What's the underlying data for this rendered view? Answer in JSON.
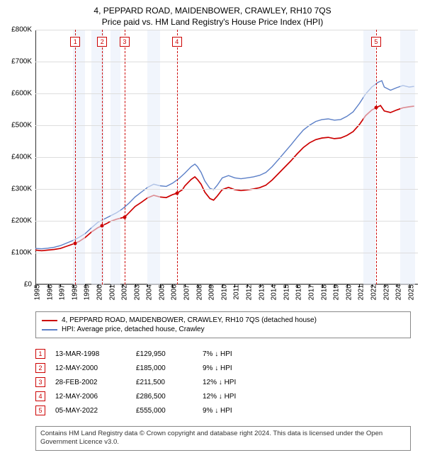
{
  "title_line1": "4, PEPPARD ROAD, MAIDENBOWER, CRAWLEY, RH10 7QS",
  "title_line2": "Price paid vs. HM Land Registry's House Price Index (HPI)",
  "chart": {
    "type": "line",
    "x_min": 1995,
    "x_max": 2025.7,
    "y_min": 0,
    "y_max": 800000,
    "y_ticks": [
      0,
      100000,
      200000,
      300000,
      400000,
      500000,
      600000,
      700000,
      800000
    ],
    "y_tick_labels": [
      "£0",
      "£100K",
      "£200K",
      "£300K",
      "£400K",
      "£500K",
      "£600K",
      "£700K",
      "£800K"
    ],
    "x_ticks": [
      1995,
      1996,
      1997,
      1998,
      1999,
      2000,
      2001,
      2002,
      2003,
      2004,
      2005,
      2006,
      2007,
      2008,
      2009,
      2010,
      2011,
      2012,
      2013,
      2014,
      2015,
      2016,
      2017,
      2018,
      2019,
      2020,
      2021,
      2022,
      2023,
      2024,
      2025
    ],
    "grid_color": "#dddddd",
    "shade_color": "#e8eefa",
    "shaded_ranges": [
      [
        1998,
        1999
      ],
      [
        1999.5,
        2000.5
      ],
      [
        2001,
        2001.8
      ],
      [
        2004,
        2005
      ],
      [
        2021.3,
        2022.3
      ],
      [
        2024.3,
        2025.5
      ]
    ],
    "dashed_line_color": "#cc0000",
    "series_property": {
      "label": "4, PEPPARD ROAD, MAIDENBOWER, CRAWLEY, RH10 7QS (detached house)",
      "color": "#cc0000",
      "width": 1.7,
      "data": [
        [
          1995.0,
          108000
        ],
        [
          1995.5,
          106000
        ],
        [
          1996.0,
          108000
        ],
        [
          1996.5,
          110000
        ],
        [
          1997.0,
          113000
        ],
        [
          1997.5,
          120000
        ],
        [
          1998.0,
          127000
        ],
        [
          1998.2,
          129950
        ],
        [
          1998.5,
          135000
        ],
        [
          1999.0,
          148000
        ],
        [
          1999.5,
          165000
        ],
        [
          2000.0,
          178000
        ],
        [
          2000.36,
          185000
        ],
        [
          2000.8,
          193000
        ],
        [
          2001.0,
          198000
        ],
        [
          2001.5,
          205000
        ],
        [
          2002.0,
          210000
        ],
        [
          2002.16,
          211500
        ],
        [
          2002.5,
          225000
        ],
        [
          2003.0,
          245000
        ],
        [
          2003.5,
          258000
        ],
        [
          2004.0,
          272000
        ],
        [
          2004.5,
          280000
        ],
        [
          2005.0,
          275000
        ],
        [
          2005.5,
          273000
        ],
        [
          2006.0,
          282000
        ],
        [
          2006.36,
          286500
        ],
        [
          2006.8,
          298000
        ],
        [
          2007.0,
          310000
        ],
        [
          2007.5,
          330000
        ],
        [
          2007.8,
          338000
        ],
        [
          2008.0,
          330000
        ],
        [
          2008.3,
          315000
        ],
        [
          2008.6,
          290000
        ],
        [
          2009.0,
          270000
        ],
        [
          2009.3,
          265000
        ],
        [
          2009.6,
          278000
        ],
        [
          2010.0,
          298000
        ],
        [
          2010.5,
          305000
        ],
        [
          2011.0,
          298000
        ],
        [
          2011.5,
          295000
        ],
        [
          2012.0,
          297000
        ],
        [
          2012.5,
          300000
        ],
        [
          2013.0,
          304000
        ],
        [
          2013.5,
          312000
        ],
        [
          2014.0,
          328000
        ],
        [
          2014.5,
          348000
        ],
        [
          2015.0,
          368000
        ],
        [
          2015.5,
          388000
        ],
        [
          2016.0,
          410000
        ],
        [
          2016.5,
          430000
        ],
        [
          2017.0,
          445000
        ],
        [
          2017.5,
          455000
        ],
        [
          2018.0,
          460000
        ],
        [
          2018.5,
          462000
        ],
        [
          2019.0,
          458000
        ],
        [
          2019.5,
          460000
        ],
        [
          2020.0,
          468000
        ],
        [
          2020.5,
          480000
        ],
        [
          2021.0,
          502000
        ],
        [
          2021.5,
          530000
        ],
        [
          2022.0,
          548000
        ],
        [
          2022.34,
          555000
        ],
        [
          2022.7,
          562000
        ],
        [
          2023.0,
          545000
        ],
        [
          2023.5,
          540000
        ],
        [
          2024.0,
          548000
        ],
        [
          2024.5,
          555000
        ],
        [
          2025.0,
          558000
        ],
        [
          2025.4,
          560000
        ]
      ]
    },
    "series_hpi": {
      "label": "HPI: Average price, detached house, Crawley",
      "color": "#5b7fc7",
      "width": 1.4,
      "data": [
        [
          1995.0,
          113000
        ],
        [
          1995.5,
          112000
        ],
        [
          1996.0,
          114000
        ],
        [
          1996.5,
          117000
        ],
        [
          1997.0,
          122000
        ],
        [
          1997.5,
          130000
        ],
        [
          1998.0,
          138000
        ],
        [
          1998.5,
          148000
        ],
        [
          1999.0,
          160000
        ],
        [
          1999.5,
          178000
        ],
        [
          2000.0,
          195000
        ],
        [
          2000.5,
          205000
        ],
        [
          2001.0,
          215000
        ],
        [
          2001.5,
          225000
        ],
        [
          2002.0,
          238000
        ],
        [
          2002.5,
          255000
        ],
        [
          2003.0,
          275000
        ],
        [
          2003.5,
          290000
        ],
        [
          2004.0,
          305000
        ],
        [
          2004.5,
          315000
        ],
        [
          2005.0,
          310000
        ],
        [
          2005.5,
          308000
        ],
        [
          2006.0,
          318000
        ],
        [
          2006.5,
          332000
        ],
        [
          2007.0,
          350000
        ],
        [
          2007.5,
          370000
        ],
        [
          2007.8,
          378000
        ],
        [
          2008.0,
          370000
        ],
        [
          2008.3,
          352000
        ],
        [
          2008.6,
          325000
        ],
        [
          2009.0,
          302000
        ],
        [
          2009.3,
          298000
        ],
        [
          2009.6,
          312000
        ],
        [
          2010.0,
          335000
        ],
        [
          2010.5,
          342000
        ],
        [
          2011.0,
          335000
        ],
        [
          2011.5,
          332000
        ],
        [
          2012.0,
          335000
        ],
        [
          2012.5,
          338000
        ],
        [
          2013.0,
          343000
        ],
        [
          2013.5,
          352000
        ],
        [
          2014.0,
          370000
        ],
        [
          2014.5,
          392000
        ],
        [
          2015.0,
          415000
        ],
        [
          2015.5,
          438000
        ],
        [
          2016.0,
          462000
        ],
        [
          2016.5,
          485000
        ],
        [
          2017.0,
          500000
        ],
        [
          2017.5,
          512000
        ],
        [
          2018.0,
          518000
        ],
        [
          2018.5,
          520000
        ],
        [
          2019.0,
          516000
        ],
        [
          2019.5,
          518000
        ],
        [
          2020.0,
          528000
        ],
        [
          2020.5,
          542000
        ],
        [
          2021.0,
          568000
        ],
        [
          2021.5,
          598000
        ],
        [
          2022.0,
          620000
        ],
        [
          2022.5,
          635000
        ],
        [
          2022.8,
          640000
        ],
        [
          2023.0,
          620000
        ],
        [
          2023.5,
          610000
        ],
        [
          2024.0,
          618000
        ],
        [
          2024.5,
          625000
        ],
        [
          2025.0,
          620000
        ],
        [
          2025.4,
          622000
        ]
      ]
    },
    "sales": [
      {
        "n": "1",
        "year": 1998.2,
        "price": 129950,
        "date": "13-MAR-1998",
        "price_str": "£129,950",
        "pct": "7% ↓ HPI"
      },
      {
        "n": "2",
        "year": 2000.36,
        "price": 185000,
        "date": "12-MAY-2000",
        "price_str": "£185,000",
        "pct": "9% ↓ HPI"
      },
      {
        "n": "3",
        "year": 2002.16,
        "price": 211500,
        "date": "28-FEB-2002",
        "price_str": "£211,500",
        "pct": "12% ↓ HPI"
      },
      {
        "n": "4",
        "year": 2006.36,
        "price": 286500,
        "date": "12-MAY-2006",
        "price_str": "£286,500",
        "pct": "12% ↓ HPI"
      },
      {
        "n": "5",
        "year": 2022.34,
        "price": 555000,
        "date": "05-MAY-2022",
        "price_str": "£555,000",
        "pct": "9% ↓ HPI"
      }
    ]
  },
  "footnote": "Contains HM Land Registry data © Crown copyright and database right 2024. This data is licensed under the Open Government Licence v3.0."
}
